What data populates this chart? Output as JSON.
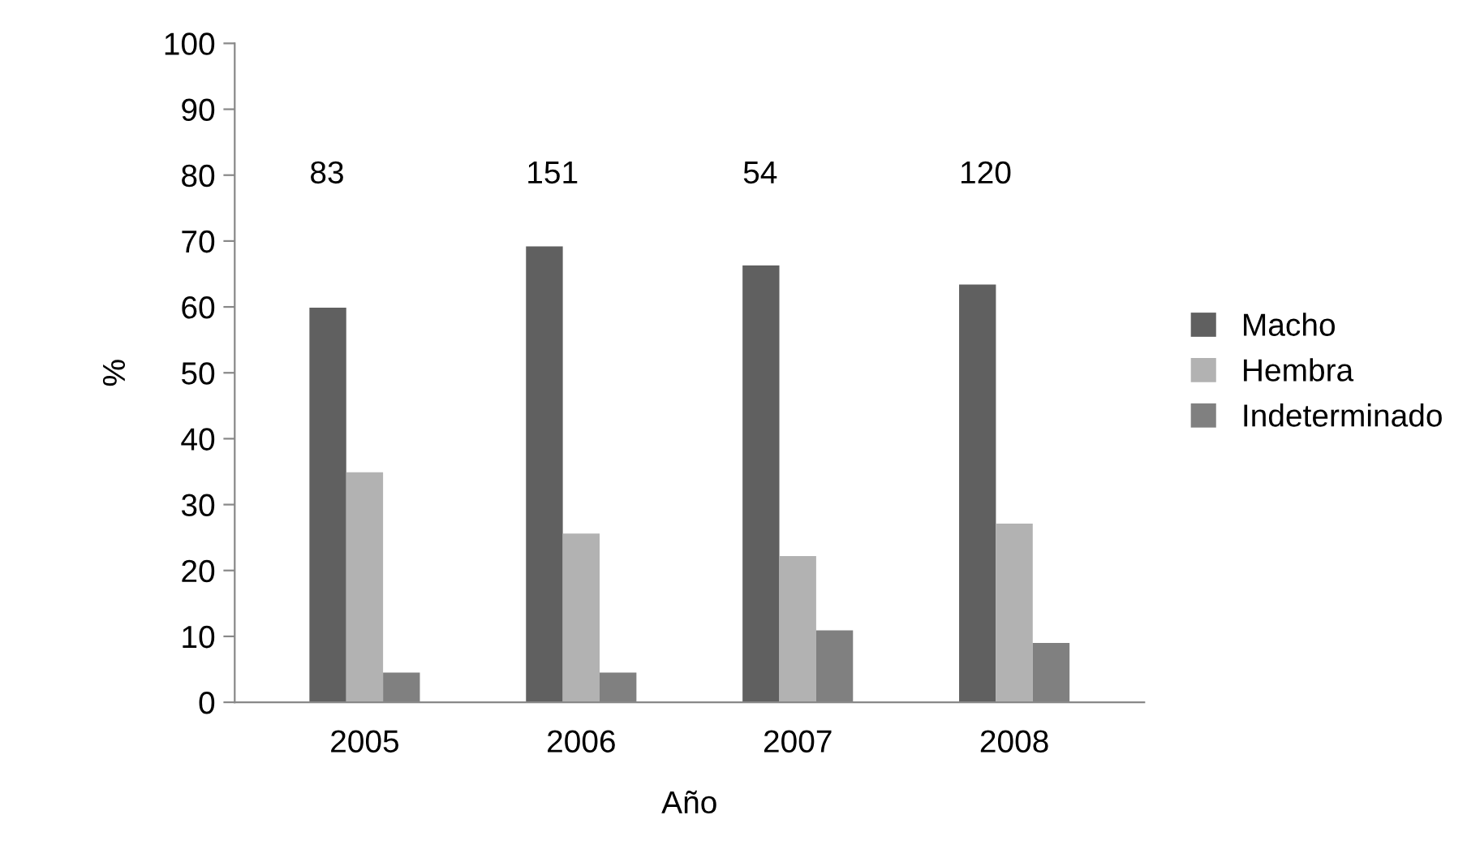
{
  "chart_data": {
    "type": "bar",
    "xlabel": "Año",
    "ylabel": "%",
    "categories": [
      "2005",
      "2006",
      "2007",
      "2008"
    ],
    "series": [
      {
        "name": "Macho",
        "color": "#606060",
        "values": [
          59.9,
          69.2,
          66.3,
          63.4
        ]
      },
      {
        "name": "Hembra",
        "color": "#b2b2b2",
        "values": [
          34.9,
          25.6,
          22.2,
          27.1
        ]
      },
      {
        "name": "Indeterminado",
        "color": "#808080",
        "values": [
          4.5,
          4.5,
          10.9,
          9.0
        ]
      }
    ],
    "ylim": [
      0,
      100
    ],
    "yticks": [
      0,
      10,
      20,
      30,
      40,
      50,
      60,
      70,
      80,
      90,
      100
    ],
    "grid": false,
    "legend": "right",
    "annotations": [
      "83",
      "151",
      "54",
      "120"
    ]
  }
}
